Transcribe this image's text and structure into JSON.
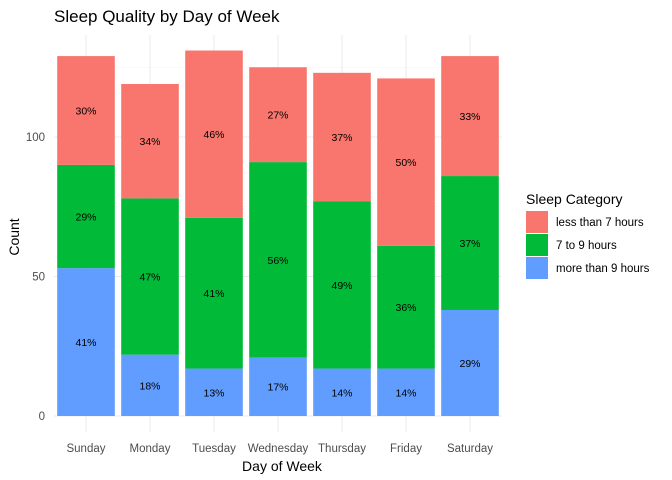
{
  "chart_data": {
    "type": "bar",
    "stacked": true,
    "title": "Sleep Quality by Day of Week",
    "xlabel": "Day of Week",
    "ylabel": "Count",
    "ylim": [
      0,
      134
    ],
    "yticks": [
      0,
      50,
      100
    ],
    "grid": true,
    "legend_title": "Sleep Category",
    "legend_position": "right",
    "categories": [
      "Sunday",
      "Monday",
      "Tuesday",
      "Wednesday",
      "Thursday",
      "Friday",
      "Saturday"
    ],
    "series": [
      {
        "name": "more than 9 hours",
        "color": "#619CFF",
        "values": [
          53,
          22,
          17,
          21,
          17,
          17,
          38
        ],
        "labels": [
          "41%",
          "18%",
          "13%",
          "17%",
          "14%",
          "14%",
          "29%"
        ]
      },
      {
        "name": "7 to 9 hours",
        "color": "#00BA38",
        "values": [
          37,
          56,
          54,
          70,
          60,
          44,
          48
        ],
        "labels": [
          "29%",
          "47%",
          "41%",
          "56%",
          "49%",
          "36%",
          "37%"
        ]
      },
      {
        "name": "less than 7 hours",
        "color": "#F8766D",
        "values": [
          39,
          41,
          60,
          34,
          46,
          60,
          43
        ],
        "labels": [
          "30%",
          "34%",
          "46%",
          "27%",
          "37%",
          "50%",
          "33%"
        ]
      }
    ],
    "legend_order": [
      "less than 7 hours",
      "7 to 9 hours",
      "more than 9 hours"
    ]
  }
}
